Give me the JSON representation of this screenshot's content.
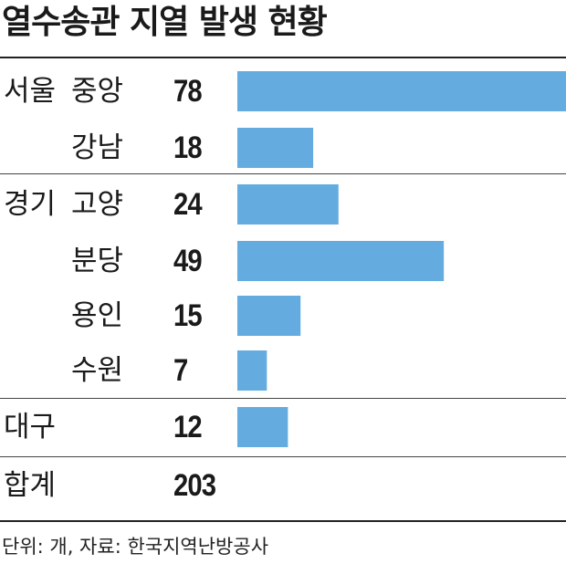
{
  "title": "열수송관 지열 발생 현황",
  "chart_data": {
    "type": "bar",
    "orientation": "horizontal",
    "bar_color": "#64acdf",
    "xlim": [
      0,
      78
    ],
    "rows": [
      {
        "region": "서울",
        "city": "중앙",
        "value": 78
      },
      {
        "region": "",
        "city": "강남",
        "value": 18
      },
      {
        "region": "경기",
        "city": "고양",
        "value": 24
      },
      {
        "region": "",
        "city": "분당",
        "value": 49
      },
      {
        "region": "",
        "city": "용인",
        "value": 15
      },
      {
        "region": "",
        "city": "수원",
        "value": 7
      },
      {
        "region": "대구",
        "city": "",
        "value": 12
      }
    ],
    "total_label": "합계",
    "total_value": "203"
  },
  "source": "단위: 개, 자료: 한국지역난방공사"
}
